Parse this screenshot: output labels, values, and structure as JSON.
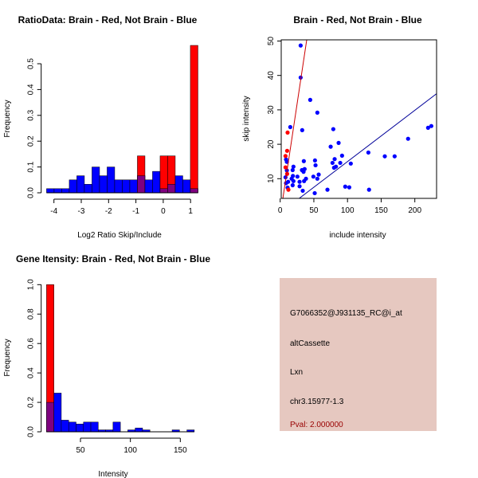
{
  "colors": {
    "brain": "#ff0000",
    "not_brain": "#0000ff",
    "overlap": "#800080",
    "info_bg": "#e6c8c0",
    "pval": "#990000"
  },
  "chart_data": [
    {
      "type": "bar",
      "title": "RatioData: Brain - Red, Not Brain - Blue",
      "xlabel": "Log2 Ratio Skip/Include",
      "ylabel": "Frequency",
      "xticks": [
        -4,
        -3,
        -2,
        -1,
        0,
        1
      ],
      "yticks": [
        0.0,
        0.1,
        0.2,
        0.3,
        0.4,
        0.5
      ],
      "ylim": [
        0,
        0.58
      ],
      "bin_start": -4.27,
      "bin_width": 0.277,
      "series": [
        {
          "name": "Not Brain",
          "color": "#0000ff",
          "values": [
            0.016,
            0.016,
            0.016,
            0.05,
            0.066,
            0.033,
            0.1,
            0.066,
            0.1,
            0.05,
            0.05,
            0.05,
            0.066,
            0.05,
            0.083,
            0.016,
            0.033,
            0.066,
            0.05,
            0.016
          ]
        },
        {
          "name": "Brain",
          "color": "#ff0000",
          "values": [
            0,
            0,
            0,
            0,
            0,
            0,
            0,
            0,
            0,
            0,
            0,
            0,
            0.143,
            0,
            0,
            0.143,
            0.143,
            0,
            0,
            0.571
          ]
        }
      ]
    },
    {
      "type": "scatter",
      "title": "Brain - Red, Not Brain - Blue",
      "xlabel": "include intensity",
      "ylabel": "skip intensity",
      "xticks": [
        0,
        50,
        100,
        150,
        200
      ],
      "yticks": [
        10,
        20,
        30,
        40,
        50
      ],
      "xlim": [
        0,
        232
      ],
      "ylim": [
        4.3,
        50.5
      ],
      "series": [
        {
          "name": "Not Brain",
          "color": "#0000ff",
          "points": [
            [
              30.4,
              48.7
            ],
            [
              30.4,
              39.4
            ],
            [
              44.6,
              32.9
            ],
            [
              55.2,
              29.2
            ],
            [
              15,
              25
            ],
            [
              32.7,
              24.1
            ],
            [
              78.9,
              24.4
            ],
            [
              86.8,
              20.4
            ],
            [
              75,
              19.3
            ],
            [
              190,
              21.6
            ],
            [
              219.7,
              24.8
            ],
            [
              224.5,
              25.3
            ],
            [
              131,
              17.6
            ],
            [
              155.4,
              16.5
            ],
            [
              170,
              16.5
            ],
            [
              91.9,
              16.7
            ],
            [
              80.9,
              15.7
            ],
            [
              77.7,
              14.6
            ],
            [
              89.2,
              14.6
            ],
            [
              104.9,
              14.4
            ],
            [
              51.7,
              15.3
            ],
            [
              52.5,
              13.9
            ],
            [
              35.1,
              15.1
            ],
            [
              80,
              13.2
            ],
            [
              82.8,
              13.5
            ],
            [
              8.7,
              15.6
            ],
            [
              9.9,
              14.9
            ],
            [
              19.7,
              13.5
            ],
            [
              18.5,
              12.5
            ],
            [
              9.9,
              12.4
            ],
            [
              32.3,
              12.5
            ],
            [
              36.3,
              12.8
            ],
            [
              34.7,
              12
            ],
            [
              57.2,
              11.2
            ],
            [
              55.2,
              10
            ],
            [
              49.3,
              10.6
            ],
            [
              38.3,
              10
            ],
            [
              25.6,
              10.6
            ],
            [
              35.5,
              9.3
            ],
            [
              18.9,
              10.8
            ],
            [
              17,
              10
            ],
            [
              19.7,
              9.3
            ],
            [
              11.8,
              9.1
            ],
            [
              28.8,
              9.1
            ],
            [
              7.9,
              10.4
            ],
            [
              8.7,
              8.7
            ],
            [
              18.5,
              8.1
            ],
            [
              28.8,
              7.8
            ],
            [
              11,
              7.4
            ],
            [
              70.2,
              6.8
            ],
            [
              33.5,
              6.5
            ],
            [
              51.3,
              5.8
            ],
            [
              96.6,
              7.7
            ],
            [
              102.6,
              7.5
            ],
            [
              132,
              6.8
            ]
          ]
        },
        {
          "name": "Brain",
          "color": "#ff0000",
          "points": [
            [
              11,
              23.4
            ],
            [
              10.3,
              18.1
            ],
            [
              7.9,
              16.6
            ],
            [
              7.9,
              13.3
            ],
            [
              10.3,
              11.4
            ],
            [
              12.2,
              6.8
            ]
          ]
        }
      ],
      "fit_lines": [
        {
          "name": "Brain fit",
          "color": "#cc0000",
          "slope": 1.3,
          "intercept": -0.9
        },
        {
          "name": "Not Brain fit",
          "color": "#000099",
          "slope": 0.149,
          "intercept": 0.08
        }
      ]
    },
    {
      "type": "bar",
      "title": "Gene Itensity: Brain - Red, Not Brain - Blue",
      "xlabel": "Intensity",
      "ylabel": "Frequency",
      "xticks": [
        50,
        100,
        150
      ],
      "yticks": [
        0.0,
        0.2,
        0.4,
        0.6,
        0.8,
        1.0
      ],
      "ylim": [
        0,
        1.0
      ],
      "bin_start": 16,
      "bin_width": 7.4,
      "series": [
        {
          "name": "Not Brain",
          "color": "#0000ff",
          "values": [
            0.2,
            0.263,
            0.079,
            0.066,
            0.053,
            0.066,
            0.066,
            0.013,
            0.013,
            0.066,
            0,
            0.013,
            0.026,
            0.013,
            0,
            0,
            0,
            0.013,
            0,
            0.013
          ]
        },
        {
          "name": "Brain",
          "color": "#ff0000",
          "values": [
            1.0,
            0,
            0,
            0,
            0,
            0,
            0,
            0,
            0,
            0,
            0,
            0,
            0,
            0,
            0,
            0,
            0,
            0,
            0,
            0
          ]
        }
      ]
    }
  ],
  "info": {
    "probe": "G7066352@J931135_RC@i_at",
    "event": "altCassette",
    "gene": "Lxn",
    "location": "chr3.15977-1.3",
    "pval": "Pval: 2.000000"
  }
}
